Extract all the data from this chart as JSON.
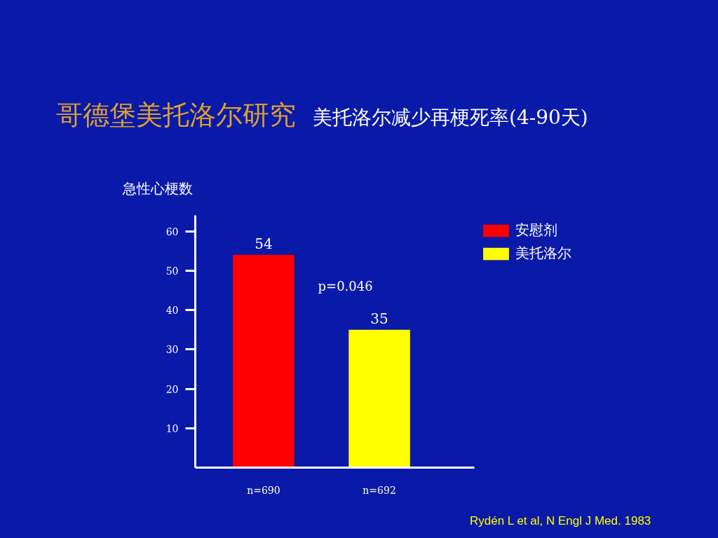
{
  "chart_data": {
    "type": "bar",
    "title": "哥德堡美托洛尔研究",
    "subtitle": "美托洛尔减少再梗死率(4-90天)",
    "ylabel": "急性心梗数",
    "categories": [
      "n=690",
      "n=692"
    ],
    "series": [
      {
        "name": "安慰剂",
        "color": "#ff0000",
        "values": [
          54,
          null
        ]
      },
      {
        "name": "美托洛尔",
        "color": "#ffff00",
        "values": [
          null,
          35
        ]
      }
    ],
    "ylim": [
      0,
      64
    ],
    "yticks": [
      10,
      20,
      30,
      40,
      50,
      60
    ],
    "grid": false,
    "legend": "top right",
    "data_labels": true,
    "annotations": [
      "p=0.046",
      "Rydén L et al, N Engl J Med. 1983"
    ]
  }
}
